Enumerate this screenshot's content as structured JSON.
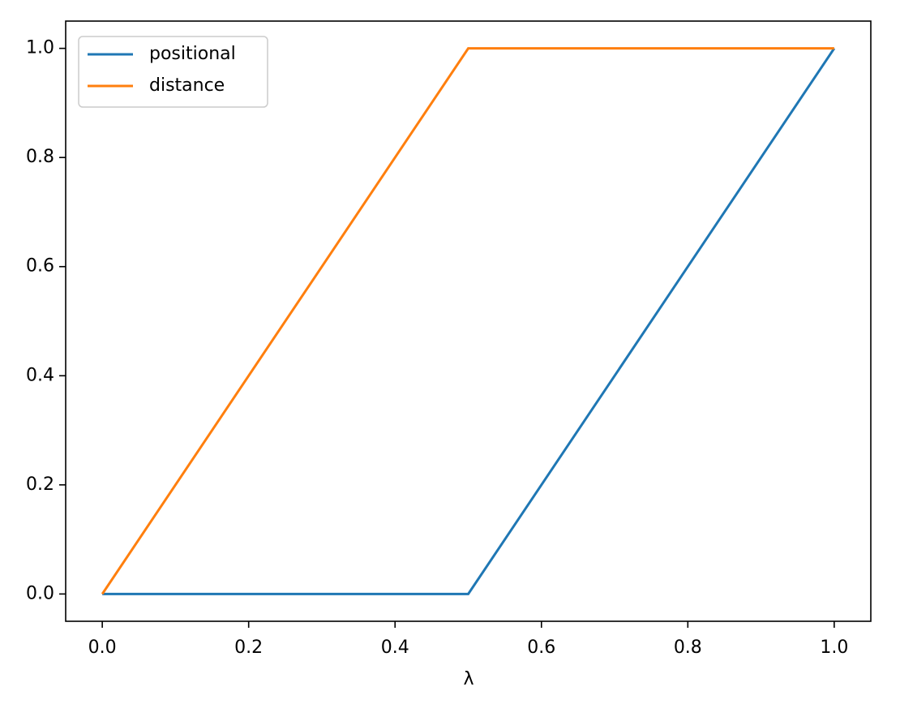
{
  "chart_data": {
    "type": "line",
    "x_label": "λ",
    "x": [
      0,
      0.5,
      1
    ],
    "series": [
      {
        "name": "positional",
        "color": "#1f77b4",
        "values": [
          0,
          0,
          1
        ]
      },
      {
        "name": "distance",
        "color": "#ff7f0e",
        "values": [
          0,
          1,
          1
        ]
      }
    ],
    "xlim": [
      -0.05,
      1.05
    ],
    "ylim": [
      -0.05,
      1.05
    ],
    "xticks": [
      {
        "value": 0,
        "label": "0.0"
      },
      {
        "value": 0.2,
        "label": "0.2"
      },
      {
        "value": 0.4,
        "label": "0.4"
      },
      {
        "value": 0.6,
        "label": "0.6"
      },
      {
        "value": 0.8,
        "label": "0.8"
      },
      {
        "value": 1,
        "label": "1.0"
      }
    ],
    "yticks": [
      {
        "value": 0,
        "label": "0.0"
      },
      {
        "value": 0.2,
        "label": "0.2"
      },
      {
        "value": 0.4,
        "label": "0.4"
      },
      {
        "value": 0.6,
        "label": "0.6"
      },
      {
        "value": 0.8,
        "label": "0.8"
      },
      {
        "value": 1,
        "label": "1.0"
      }
    ],
    "grid": false,
    "legend": "upper left"
  }
}
